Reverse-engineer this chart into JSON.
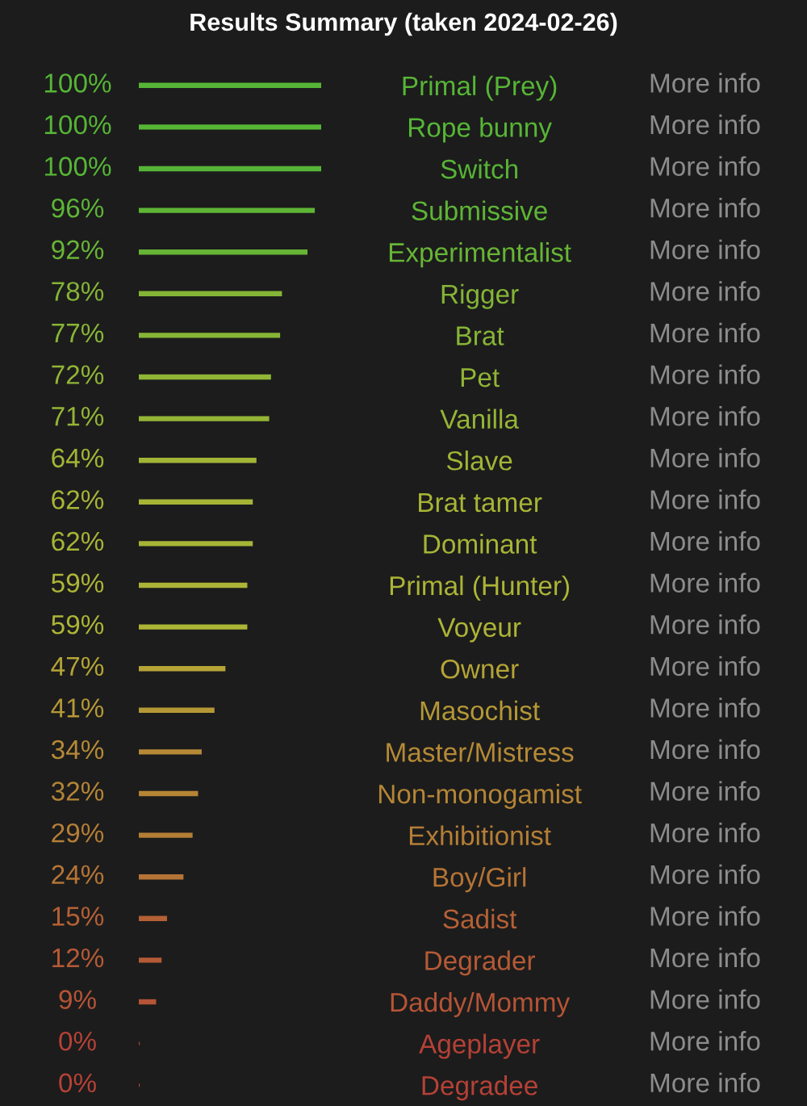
{
  "chart_data": {
    "type": "bar",
    "orientation": "horizontal",
    "title": "Results Summary (taken 2024-02-26)",
    "categories": [
      "Primal (Prey)",
      "Rope bunny",
      "Switch",
      "Submissive",
      "Experimentalist",
      "Rigger",
      "Brat",
      "Pet",
      "Vanilla",
      "Slave",
      "Brat tamer",
      "Dominant",
      "Primal (Hunter)",
      "Voyeur",
      "Owner",
      "Masochist",
      "Master/Mistress",
      "Non-monogamist",
      "Exhibitionist",
      "Boy/Girl",
      "Sadist",
      "Degrader",
      "Daddy/Mommy",
      "Ageplayer",
      "Degradee"
    ],
    "values": [
      100,
      100,
      100,
      96,
      92,
      78,
      77,
      72,
      71,
      64,
      62,
      62,
      59,
      59,
      47,
      41,
      34,
      32,
      29,
      24,
      15,
      12,
      9,
      0,
      0
    ],
    "colors": [
      "#56b536",
      "#56b536",
      "#56b536",
      "#5eb536",
      "#67b536",
      "#85b536",
      "#87b536",
      "#91b536",
      "#94b536",
      "#a2b536",
      "#a7b536",
      "#a7b536",
      "#adb536",
      "#adb536",
      "#b5a436",
      "#b59836",
      "#b58936",
      "#b58536",
      "#b57e36",
      "#b57436",
      "#b56036",
      "#b55a36",
      "#b55436",
      "#b54136",
      "#b54136"
    ],
    "value_labels": [
      "100%",
      "100%",
      "100%",
      "96%",
      "92%",
      "78%",
      "77%",
      "72%",
      "71%",
      "64%",
      "62%",
      "62%",
      "59%",
      "59%",
      "47%",
      "41%",
      "34%",
      "32%",
      "29%",
      "24%",
      "15%",
      "12%",
      "9%",
      "0%",
      "0%"
    ],
    "annotations": [
      "More info",
      "More info",
      "More info",
      "More info",
      "More info",
      "More info",
      "More info",
      "More info",
      "More info",
      "More info",
      "More info",
      "More info",
      "More info",
      "More info",
      "More info",
      "More info",
      "More info",
      "More info",
      "More info",
      "More info",
      "More info",
      "More info",
      "More info",
      "More info",
      "More info"
    ]
  }
}
